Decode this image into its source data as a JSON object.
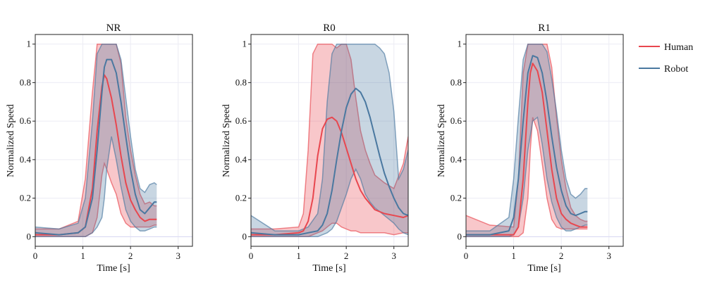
{
  "chart_data": [
    {
      "type": "line",
      "title": "NR",
      "xlabel": "Time [s]",
      "ylabel": "Normalized Speed",
      "xlim": [
        0,
        3.3
      ],
      "ylim": [
        -0.05,
        1.05
      ],
      "xticks": [
        "0",
        "1",
        "2",
        "3"
      ],
      "yticks": [
        "0",
        "0.2",
        "0.4",
        "0.6",
        "0.8",
        "1"
      ],
      "grid": true,
      "series": [
        {
          "name": "Human",
          "color": "#e8474f",
          "x": [
            0,
            0.5,
            0.9,
            1.05,
            1.2,
            1.3,
            1.4,
            1.45,
            1.5,
            1.6,
            1.7,
            1.8,
            1.9,
            2.0,
            2.1,
            2.2,
            2.3,
            2.4,
            2.5,
            2.55
          ],
          "mean": [
            0.01,
            0.01,
            0.02,
            0.05,
            0.25,
            0.55,
            0.78,
            0.84,
            0.82,
            0.72,
            0.58,
            0.42,
            0.28,
            0.19,
            0.14,
            0.1,
            0.08,
            0.09,
            0.09,
            0.09
          ],
          "upper": [
            0.04,
            0.04,
            0.08,
            0.3,
            0.75,
            1.0,
            1.0,
            1.0,
            1.0,
            1.0,
            1.0,
            0.9,
            0.62,
            0.45,
            0.32,
            0.22,
            0.17,
            0.18,
            0.16,
            0.16
          ],
          "lower": [
            0.0,
            0.0,
            0.0,
            0.0,
            0.02,
            0.1,
            0.32,
            0.38,
            0.35,
            0.28,
            0.22,
            0.12,
            0.07,
            0.05,
            0.05,
            0.05,
            0.05,
            0.05,
            0.06,
            0.06
          ]
        },
        {
          "name": "Robot",
          "color": "#4a78a0",
          "x": [
            0,
            0.5,
            0.9,
            1.05,
            1.2,
            1.3,
            1.4,
            1.45,
            1.5,
            1.6,
            1.7,
            1.8,
            1.9,
            2.0,
            2.1,
            2.2,
            2.3,
            2.4,
            2.5,
            2.55
          ],
          "mean": [
            0.02,
            0.01,
            0.02,
            0.05,
            0.2,
            0.45,
            0.75,
            0.88,
            0.92,
            0.92,
            0.85,
            0.7,
            0.52,
            0.35,
            0.22,
            0.14,
            0.12,
            0.15,
            0.18,
            0.18
          ],
          "upper": [
            0.05,
            0.04,
            0.07,
            0.2,
            0.6,
            0.95,
            1.0,
            1.0,
            1.0,
            1.0,
            1.0,
            0.92,
            0.72,
            0.52,
            0.35,
            0.25,
            0.23,
            0.27,
            0.28,
            0.27
          ],
          "lower": [
            0.0,
            0.0,
            0.0,
            0.0,
            0.02,
            0.05,
            0.1,
            0.2,
            0.35,
            0.52,
            0.4,
            0.26,
            0.14,
            0.08,
            0.05,
            0.03,
            0.03,
            0.04,
            0.05,
            0.05
          ]
        }
      ]
    },
    {
      "type": "line",
      "title": "R0",
      "xlabel": "Time [s]",
      "ylabel": "Normalized Speed",
      "xlim": [
        0,
        3.3
      ],
      "ylim": [
        -0.05,
        1.05
      ],
      "xticks": [
        "0",
        "1",
        "2",
        "3"
      ],
      "yticks": [
        "0",
        "0.2",
        "0.4",
        "0.6",
        "0.8",
        "1"
      ],
      "grid": true,
      "series": [
        {
          "name": "Human",
          "color": "#e8474f",
          "x": [
            0,
            0.5,
            1.0,
            1.1,
            1.2,
            1.3,
            1.4,
            1.5,
            1.6,
            1.7,
            1.8,
            1.9,
            2.0,
            2.1,
            2.2,
            2.3,
            2.4,
            2.5,
            2.6,
            2.8,
            3.0,
            3.2,
            3.3
          ],
          "mean": [
            0.01,
            0.01,
            0.02,
            0.03,
            0.08,
            0.2,
            0.42,
            0.56,
            0.61,
            0.62,
            0.6,
            0.54,
            0.46,
            0.38,
            0.3,
            0.24,
            0.2,
            0.17,
            0.14,
            0.12,
            0.11,
            0.1,
            0.11
          ],
          "upper": [
            0.04,
            0.04,
            0.05,
            0.12,
            0.45,
            0.95,
            1.0,
            1.0,
            1.0,
            1.0,
            0.98,
            1.0,
            1.0,
            0.92,
            0.72,
            0.55,
            0.45,
            0.38,
            0.32,
            0.28,
            0.25,
            0.38,
            0.52
          ],
          "lower": [
            0.0,
            0.0,
            0.0,
            0.0,
            0.0,
            0.01,
            0.02,
            0.03,
            0.05,
            0.07,
            0.07,
            0.05,
            0.04,
            0.03,
            0.03,
            0.02,
            0.02,
            0.02,
            0.02,
            0.02,
            0.01,
            0.02,
            0.02
          ]
        },
        {
          "name": "Robot",
          "color": "#4a78a0",
          "x": [
            0,
            0.5,
            1.0,
            1.2,
            1.4,
            1.5,
            1.6,
            1.7,
            1.8,
            1.9,
            2.0,
            2.1,
            2.2,
            2.3,
            2.4,
            2.5,
            2.6,
            2.7,
            2.8,
            2.9,
            3.0,
            3.1,
            3.2,
            3.3
          ],
          "mean": [
            0.02,
            0.01,
            0.01,
            0.02,
            0.03,
            0.06,
            0.12,
            0.24,
            0.4,
            0.55,
            0.67,
            0.74,
            0.77,
            0.75,
            0.7,
            0.62,
            0.52,
            0.42,
            0.33,
            0.26,
            0.2,
            0.15,
            0.12,
            0.11
          ],
          "upper": [
            0.11,
            0.03,
            0.03,
            0.05,
            0.12,
            0.3,
            0.7,
            0.95,
            1.0,
            1.0,
            1.0,
            1.0,
            1.0,
            1.0,
            1.0,
            1.0,
            1.0,
            0.98,
            0.95,
            0.85,
            0.65,
            0.3,
            0.35,
            0.45
          ],
          "lower": [
            0.0,
            0.0,
            0.0,
            0.0,
            0.0,
            0.01,
            0.02,
            0.04,
            0.08,
            0.15,
            0.22,
            0.3,
            0.35,
            0.3,
            0.22,
            0.18,
            0.15,
            0.13,
            0.11,
            0.09,
            0.07,
            0.04,
            0.02,
            0.01
          ]
        }
      ]
    },
    {
      "type": "line",
      "title": "R1",
      "xlabel": "Time [s]",
      "ylabel": "Normalized Speed",
      "xlim": [
        0,
        3.3
      ],
      "ylim": [
        -0.05,
        1.05
      ],
      "xticks": [
        "0",
        "1",
        "2",
        "3"
      ],
      "yticks": [
        "0",
        "0.2",
        "0.4",
        "0.6",
        "0.8",
        "1"
      ],
      "grid": true,
      "series": [
        {
          "name": "Human",
          "color": "#e8474f",
          "x": [
            0,
            0.5,
            1.0,
            1.1,
            1.2,
            1.3,
            1.35,
            1.4,
            1.5,
            1.6,
            1.7,
            1.8,
            1.9,
            2.0,
            2.1,
            2.2,
            2.3,
            2.4,
            2.5,
            2.55
          ],
          "mean": [
            0.01,
            0.01,
            0.01,
            0.05,
            0.3,
            0.7,
            0.85,
            0.9,
            0.86,
            0.75,
            0.55,
            0.35,
            0.2,
            0.12,
            0.09,
            0.07,
            0.06,
            0.05,
            0.05,
            0.05
          ],
          "upper": [
            0.11,
            0.06,
            0.05,
            0.3,
            0.85,
            1.0,
            1.0,
            1.0,
            1.0,
            1.0,
            1.0,
            0.88,
            0.62,
            0.4,
            0.25,
            0.15,
            0.11,
            0.09,
            0.08,
            0.08
          ],
          "lower": [
            0.0,
            0.0,
            0.0,
            0.0,
            0.02,
            0.2,
            0.45,
            0.62,
            0.55,
            0.38,
            0.2,
            0.09,
            0.05,
            0.04,
            0.04,
            0.04,
            0.04,
            0.04,
            0.04,
            0.04
          ]
        },
        {
          "name": "Robot",
          "color": "#4a78a0",
          "x": [
            0,
            0.5,
            0.9,
            1.0,
            1.1,
            1.2,
            1.3,
            1.4,
            1.5,
            1.6,
            1.7,
            1.8,
            1.9,
            2.0,
            2.1,
            2.2,
            2.3,
            2.4,
            2.5,
            2.55
          ],
          "mean": [
            0.01,
            0.01,
            0.03,
            0.1,
            0.3,
            0.6,
            0.85,
            0.94,
            0.93,
            0.85,
            0.7,
            0.52,
            0.36,
            0.24,
            0.16,
            0.12,
            0.11,
            0.12,
            0.13,
            0.13
          ],
          "upper": [
            0.03,
            0.03,
            0.1,
            0.3,
            0.62,
            0.92,
            1.0,
            1.0,
            1.0,
            1.0,
            0.96,
            0.82,
            0.65,
            0.45,
            0.3,
            0.22,
            0.2,
            0.22,
            0.25,
            0.25
          ],
          "lower": [
            0.0,
            0.0,
            0.0,
            0.01,
            0.05,
            0.2,
            0.45,
            0.6,
            0.62,
            0.48,
            0.3,
            0.18,
            0.1,
            0.05,
            0.03,
            0.03,
            0.04,
            0.05,
            0.06,
            0.06
          ]
        }
      ]
    }
  ],
  "legend": {
    "items": [
      {
        "label": "Human",
        "color": "#e8474f"
      },
      {
        "label": "Robot",
        "color": "#4a78a0"
      }
    ]
  }
}
